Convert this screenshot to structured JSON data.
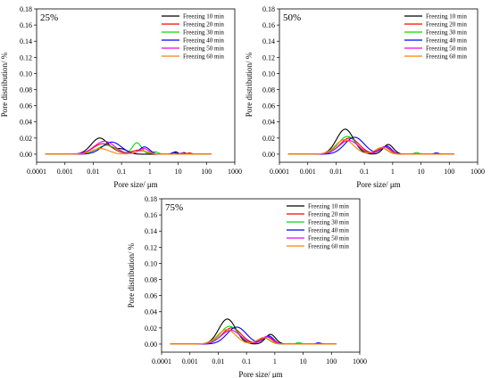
{
  "chart_data": [
    {
      "type": "line",
      "panel_label": "25%",
      "xlabel": "Pore size/ μm",
      "ylabel": "Pore distribution/ %",
      "xscale": "log",
      "xlim": [
        0.0001,
        1000
      ],
      "ylim": [
        -0.01,
        0.18
      ],
      "x_ticks": [
        "0.0001",
        "0.001",
        "0.01",
        "0.1",
        "1",
        "10",
        "100",
        "1000"
      ],
      "y_ticks": [
        "0.00",
        "0.02",
        "0.04",
        "0.06",
        "0.08",
        "0.10",
        "0.12",
        "0.14",
        "0.16",
        "0.18"
      ],
      "legend_position": "top-right",
      "series": [
        {
          "name": "Freezing 10 min",
          "color": "#000000",
          "range": [
            0.0002,
            150
          ],
          "peaks": [
            [
              0.017,
              0.02,
              0.3
            ],
            [
              0.1,
              0.006,
              0.22
            ],
            [
              8,
              0.003,
              0.08
            ],
            [
              16,
              0.002,
              0.06
            ]
          ]
        },
        {
          "name": "Freezing 20 min",
          "color": "#ff0000",
          "range": [
            0.0002,
            150
          ],
          "peaks": [
            [
              0.022,
              0.013,
              0.34
            ],
            [
              0.4,
              0.005,
              0.25
            ],
            [
              25,
              0.0015,
              0.08
            ]
          ]
        },
        {
          "name": "Freezing 30 min",
          "color": "#00dd00",
          "range": [
            0.0002,
            150
          ],
          "peaks": [
            [
              0.03,
              0.011,
              0.34
            ],
            [
              0.35,
              0.014,
              0.16
            ],
            [
              1.5,
              0.003,
              0.12
            ]
          ]
        },
        {
          "name": "Freezing 40 min",
          "color": "#0000ff",
          "range": [
            0.0002,
            150
          ],
          "peaks": [
            [
              0.045,
              0.015,
              0.34
            ],
            [
              0.65,
              0.009,
              0.18
            ],
            [
              7,
              0.002,
              0.08
            ]
          ]
        },
        {
          "name": "Freezing 50 min",
          "color": "#ee00ee",
          "range": [
            0.0002,
            150
          ],
          "peaks": [
            [
              0.025,
              0.016,
              0.36
            ],
            [
              0.6,
              0.007,
              0.18
            ],
            [
              14,
              0.0015,
              0.08
            ]
          ]
        },
        {
          "name": "Freezing 60 min",
          "color": "#ff8000",
          "range": [
            0.0002,
            150
          ],
          "peaks": [
            [
              0.018,
              0.007,
              0.3
            ],
            [
              0.5,
              0.004,
              0.25
            ]
          ]
        }
      ]
    },
    {
      "type": "line",
      "panel_label": "50%",
      "xlabel": "Pore size/ μm",
      "ylabel": "Pore distribution/ %",
      "xscale": "log",
      "xlim": [
        0.0001,
        1000
      ],
      "ylim": [
        -0.01,
        0.18
      ],
      "x_ticks": [
        "0.0001",
        "0.001",
        "0.01",
        "0.1",
        "1",
        "10",
        "100",
        "1000"
      ],
      "y_ticks": [
        "0.00",
        "0.02",
        "0.04",
        "0.06",
        "0.08",
        "0.10",
        "0.12",
        "0.14",
        "0.16",
        "0.18"
      ],
      "legend_position": "top-right",
      "series": [
        {
          "name": "Freezing 10 min",
          "color": "#000000",
          "range": [
            0.0002,
            150
          ],
          "peaks": [
            [
              0.021,
              0.031,
              0.3
            ],
            [
              0.7,
              0.012,
              0.18
            ]
          ]
        },
        {
          "name": "Freezing 20 min",
          "color": "#ff0000",
          "range": [
            0.0002,
            150
          ],
          "peaks": [
            [
              0.03,
              0.02,
              0.34
            ],
            [
              0.5,
              0.009,
              0.2
            ]
          ]
        },
        {
          "name": "Freezing 30 min",
          "color": "#00dd00",
          "range": [
            0.0002,
            150
          ],
          "peaks": [
            [
              0.025,
              0.022,
              0.32
            ],
            [
              0.4,
              0.008,
              0.2
            ],
            [
              7,
              0.002,
              0.08
            ]
          ]
        },
        {
          "name": "Freezing 40 min",
          "color": "#0000ff",
          "range": [
            0.0002,
            150
          ],
          "peaks": [
            [
              0.045,
              0.021,
              0.34
            ],
            [
              0.6,
              0.01,
              0.18
            ],
            [
              35,
              0.0015,
              0.08
            ]
          ]
        },
        {
          "name": "Freezing 50 min",
          "color": "#ee00ee",
          "range": [
            0.0002,
            150
          ],
          "peaks": [
            [
              0.028,
              0.017,
              0.34
            ],
            [
              0.55,
              0.009,
              0.2
            ]
          ]
        },
        {
          "name": "Freezing 60 min",
          "color": "#ff8000",
          "range": [
            0.0002,
            150
          ],
          "peaks": [
            [
              0.02,
              0.018,
              0.32
            ],
            [
              0.4,
              0.008,
              0.22
            ]
          ]
        }
      ]
    },
    {
      "type": "line",
      "panel_label": "75%",
      "xlabel": "Pore size/ μm",
      "ylabel": "Pore distribution/ %",
      "xscale": "log",
      "xlim": [
        0.0001,
        1000
      ],
      "ylim": [
        -0.01,
        0.18
      ],
      "x_ticks": [
        "0.0001",
        "0.001",
        "0.01",
        "0.1",
        "1",
        "10",
        "100",
        "1000"
      ],
      "y_ticks": [
        "0.00",
        "0.02",
        "0.04",
        "0.06",
        "0.08",
        "0.10",
        "0.12",
        "0.14",
        "0.16",
        "0.18"
      ],
      "legend_position": "top-right",
      "series": [
        {
          "name": "Freezing 10 min",
          "color": "#000000",
          "range": [
            0.0002,
            150
          ],
          "peaks": [
            [
              0.021,
              0.031,
              0.3
            ],
            [
              0.7,
              0.012,
              0.18
            ]
          ]
        },
        {
          "name": "Freezing 20 min",
          "color": "#ff0000",
          "range": [
            0.0002,
            150
          ],
          "peaks": [
            [
              0.03,
              0.02,
              0.34
            ],
            [
              0.5,
              0.009,
              0.2
            ]
          ]
        },
        {
          "name": "Freezing 30 min",
          "color": "#00dd00",
          "range": [
            0.0002,
            150
          ],
          "peaks": [
            [
              0.025,
              0.022,
              0.32
            ],
            [
              0.4,
              0.008,
              0.2
            ],
            [
              7,
              0.002,
              0.08
            ]
          ]
        },
        {
          "name": "Freezing 40 min",
          "color": "#0000ff",
          "range": [
            0.0002,
            150
          ],
          "peaks": [
            [
              0.045,
              0.021,
              0.34
            ],
            [
              0.6,
              0.01,
              0.18
            ],
            [
              35,
              0.0015,
              0.08
            ]
          ]
        },
        {
          "name": "Freezing 50 min",
          "color": "#ee00ee",
          "range": [
            0.0002,
            150
          ],
          "peaks": [
            [
              0.028,
              0.017,
              0.34
            ],
            [
              0.55,
              0.009,
              0.2
            ]
          ]
        },
        {
          "name": "Freezing 60 min",
          "color": "#ff8000",
          "range": [
            0.0002,
            150
          ],
          "peaks": [
            [
              0.02,
              0.018,
              0.32
            ],
            [
              0.4,
              0.008,
              0.22
            ]
          ]
        }
      ]
    }
  ]
}
